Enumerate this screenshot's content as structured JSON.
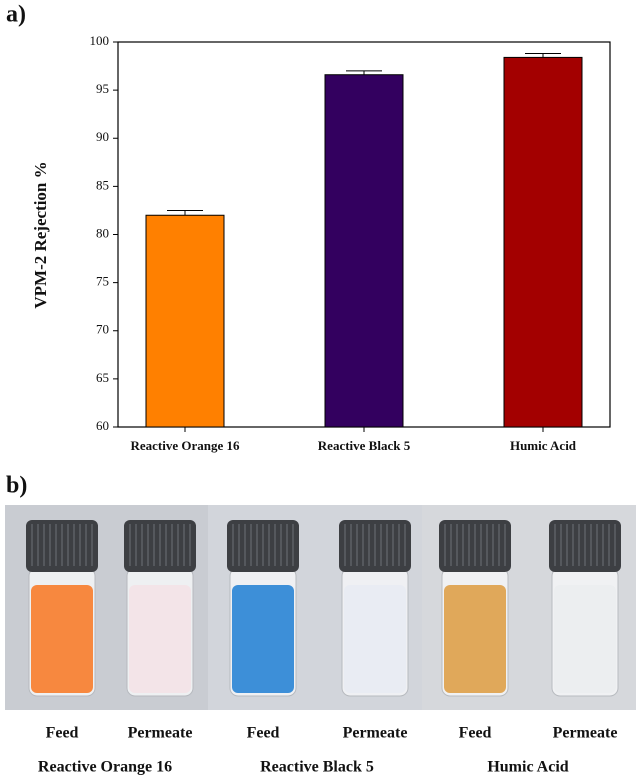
{
  "chart_data": {
    "type": "bar",
    "panel_label": "a)",
    "ylabel": "VPM-2 Rejection %",
    "categories": [
      "Reactive Orange 16",
      "Reactive Black 5",
      "Humic Acid"
    ],
    "values": [
      82,
      96.6,
      98.4
    ],
    "errors": [
      0.5,
      0.4,
      0.4
    ],
    "colors": [
      "#ff8000",
      "#33005f",
      "#a30000"
    ],
    "ylim": [
      60,
      100
    ],
    "yticks": [
      60,
      65,
      70,
      75,
      80,
      85,
      90,
      95,
      100
    ]
  },
  "photo": {
    "panel_label": "b)",
    "groups": [
      {
        "name": "Reactive Orange 16",
        "vials": [
          "Feed",
          "Permeate"
        ]
      },
      {
        "name": "Reactive Black 5",
        "vials": [
          "Feed",
          "Permeate"
        ]
      },
      {
        "name": "Humic Acid",
        "vials": [
          "Feed",
          "Permeate"
        ]
      }
    ]
  }
}
